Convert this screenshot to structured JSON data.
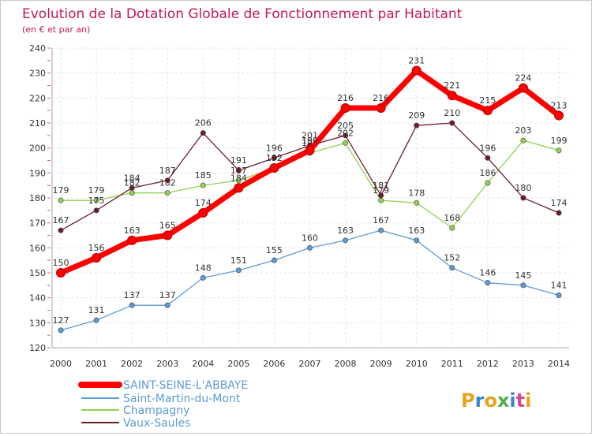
{
  "chart_data": {
    "type": "line",
    "title": "Evolution de la Dotation Globale de Fonctionnement par Habitant",
    "subtitle": "(en € et par an)",
    "xlabel": "",
    "ylabel": "",
    "x": [
      "2000",
      "2001",
      "2002",
      "2003",
      "2004",
      "2005",
      "2006",
      "2007",
      "2008",
      "2009",
      "2010",
      "2011",
      "2012",
      "2013",
      "2014"
    ],
    "ylim": [
      120,
      240
    ],
    "yticks": [
      120,
      130,
      140,
      150,
      160,
      170,
      180,
      190,
      200,
      210,
      220,
      230,
      240
    ],
    "grid": true,
    "legend_position": "bottom-left",
    "series": [
      {
        "name": "SAINT-SEINE-L'ABBAYE",
        "color": "#ff0000",
        "values": [
          150,
          156,
          163,
          165,
          174,
          184,
          192,
          199,
          216,
          216,
          231,
          221,
          215,
          224,
          213
        ]
      },
      {
        "name": "Saint-Martin-du-Mont",
        "color": "#5b9bd5",
        "values": [
          127,
          131,
          137,
          137,
          148,
          151,
          155,
          160,
          163,
          167,
          163,
          152,
          146,
          145,
          141
        ]
      },
      {
        "name": "Champagny",
        "color": "#92d050",
        "values": [
          179,
          179,
          182,
          182,
          185,
          187,
          192,
          198,
          202,
          179,
          178,
          168,
          186,
          203,
          199
        ]
      },
      {
        "name": "Vaux-Saules",
        "color": "#6b1e28",
        "values": [
          167,
          175,
          184,
          187,
          206,
          191,
          196,
          201,
          205,
          181,
          209,
          210,
          196,
          180,
          174
        ]
      }
    ]
  },
  "logo_text": "Proxiti"
}
